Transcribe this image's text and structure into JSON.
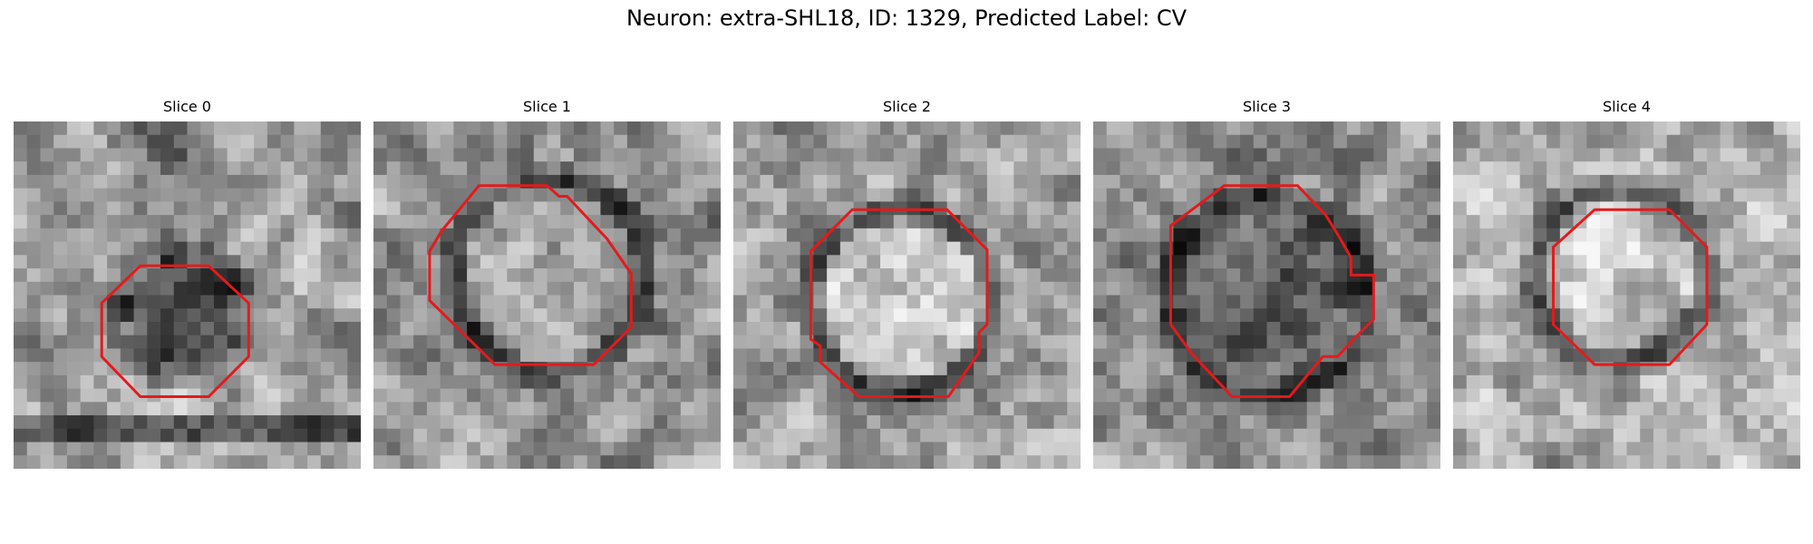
{
  "figure": {
    "title": "Neuron: extra-SHL18, ID: 1329, Predicted Label: CV"
  },
  "panels": [
    {
      "label": "Slice 0"
    },
    {
      "label": "Slice 1"
    },
    {
      "label": "Slice 2"
    },
    {
      "label": "Slice 3"
    },
    {
      "label": "Slice 4"
    }
  ],
  "colors": {
    "contour": "#e41a1c"
  }
}
